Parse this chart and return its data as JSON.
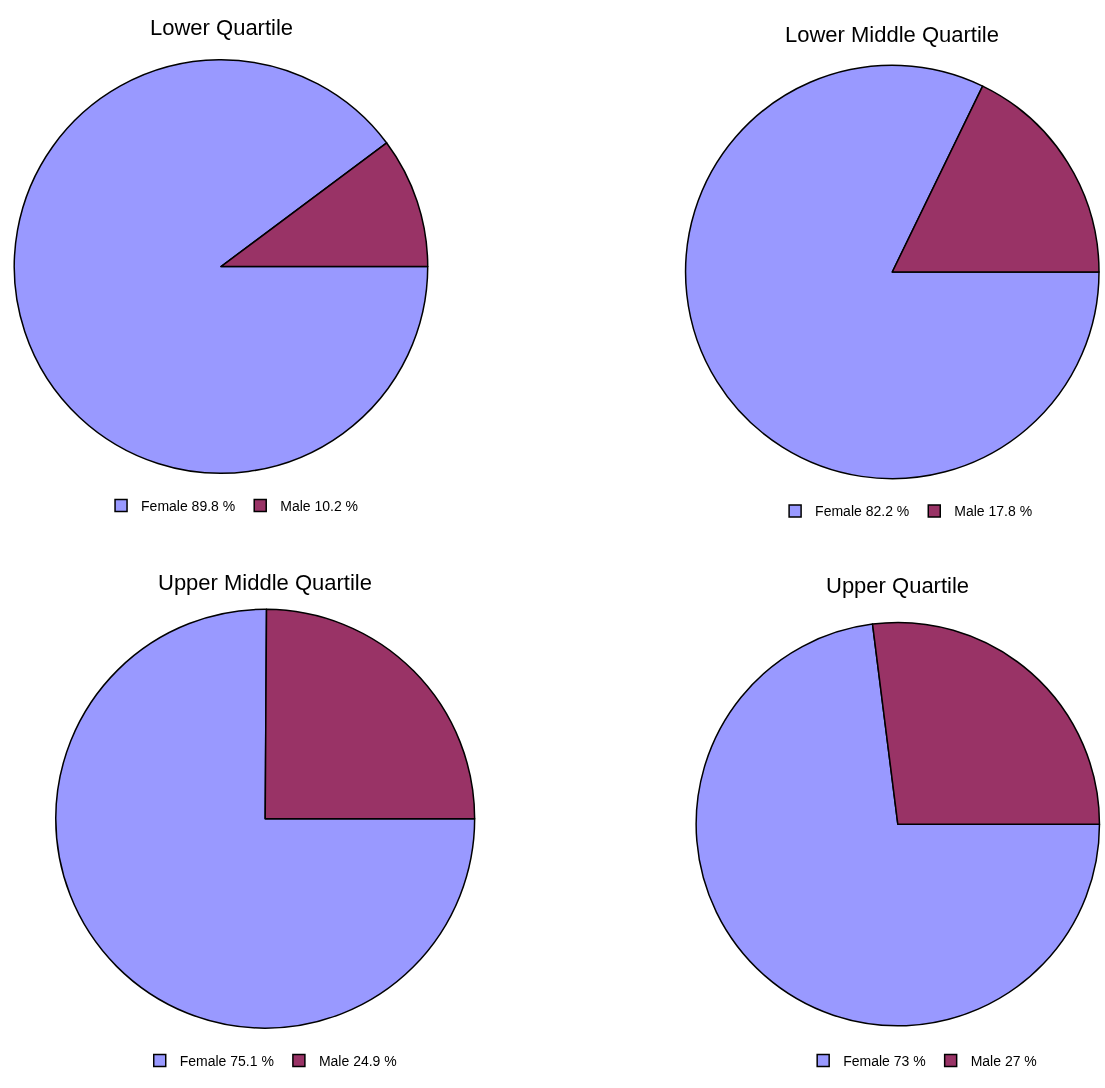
{
  "chart_data": [
    {
      "type": "pie",
      "title": "Lower Quartile",
      "categories": [
        "Female 89.8 %",
        "Male 10.2 %"
      ],
      "values": [
        89.8,
        10.2
      ],
      "colors": [
        "#9999ff",
        "#993366"
      ],
      "legend": "bottom"
    },
    {
      "type": "pie",
      "title": "Lower Middle Quartile",
      "categories": [
        "Female 82.2 %",
        "Male 17.8 %"
      ],
      "values": [
        82.2,
        17.8
      ],
      "colors": [
        "#9999ff",
        "#993366"
      ],
      "legend": "bottom"
    },
    {
      "type": "pie",
      "title": "Upper Middle Quartile",
      "categories": [
        "Female 75.1 %",
        "Male 24.9 %"
      ],
      "values": [
        75.1,
        24.9
      ],
      "colors": [
        "#9999ff",
        "#993366"
      ],
      "legend": "bottom"
    },
    {
      "type": "pie",
      "title": "Upper Quartile",
      "categories": [
        "Female 73 %",
        "Male 27 %"
      ],
      "values": [
        73,
        27
      ],
      "colors": [
        "#9999ff",
        "#993366"
      ],
      "legend": "bottom"
    }
  ]
}
